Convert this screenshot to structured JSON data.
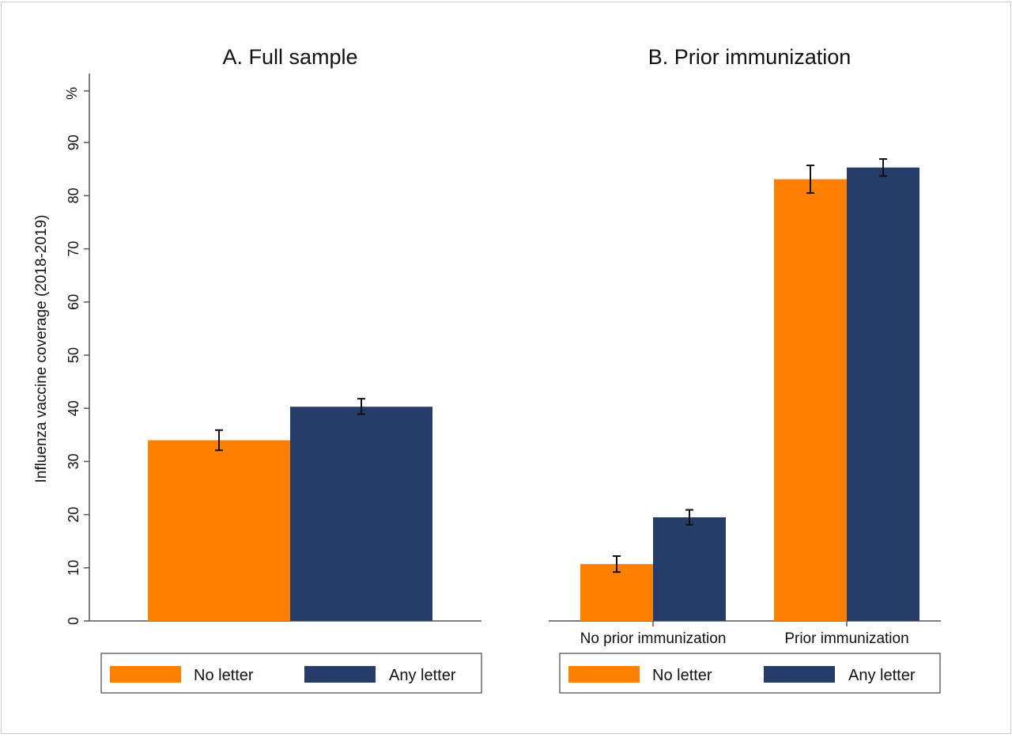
{
  "chart_data": {
    "type": "bar",
    "ylabel": "Influenza vaccine coverage (2018-2019)",
    "yunit": "%",
    "ylim": [
      0,
      100
    ],
    "yticks": [
      0,
      10,
      20,
      30,
      40,
      50,
      60,
      70,
      80,
      90
    ],
    "error_bars": true,
    "colors": {
      "No letter": "#ff8000",
      "Any letter": "#263d6a",
      "axis": "#555555",
      "error_bar": "#111111"
    },
    "legend_position": "bottom",
    "panels": [
      {
        "title": "A. Full sample",
        "categories": [
          ""
        ],
        "series": [
          {
            "name": "No letter",
            "values": [
              34.0
            ],
            "ci_low": [
              32.1
            ],
            "ci_high": [
              35.9
            ]
          },
          {
            "name": "Any letter",
            "values": [
              40.3
            ],
            "ci_low": [
              38.9
            ],
            "ci_high": [
              41.8
            ]
          }
        ]
      },
      {
        "title": "B. Prior immunization",
        "categories": [
          "No prior immunization",
          "Prior immunization"
        ],
        "series": [
          {
            "name": "No letter",
            "values": [
              10.7,
              83.1
            ],
            "ci_low": [
              9.2,
              80.5
            ],
            "ci_high": [
              12.2,
              85.7
            ]
          },
          {
            "name": "Any letter",
            "values": [
              19.5,
              85.3
            ],
            "ci_low": [
              18.1,
              83.7
            ],
            "ci_high": [
              20.9,
              86.9
            ]
          }
        ]
      }
    ]
  }
}
